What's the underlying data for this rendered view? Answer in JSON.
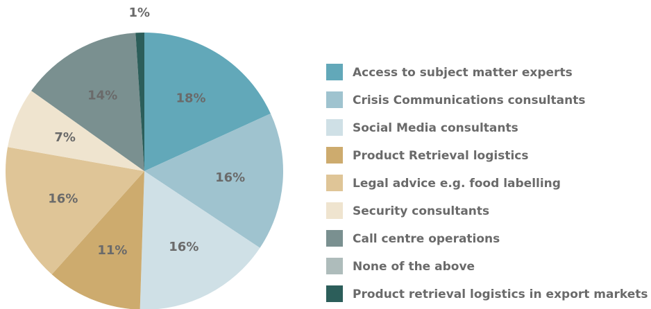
{
  "chart_data": {
    "type": "pie",
    "categories": [
      "Access to subject matter experts",
      "Crisis Communications consultants",
      "Social Media consultants",
      "Product Retrieval logistics",
      "Legal advice e.g. food labelling",
      "Security consultants",
      "Call centre operations",
      "None of the above",
      "Product retrieval logistics in export markets"
    ],
    "values": [
      18,
      16,
      16,
      11,
      16,
      7,
      14,
      0,
      1
    ],
    "value_labels": [
      "18%",
      "16%",
      "16%",
      "11%",
      "16%",
      "7%",
      "14%",
      null,
      "1%"
    ],
    "colors": [
      "#62a8b9",
      "#9fc3cf",
      "#cfe0e6",
      "#cdab6e",
      "#dfc597",
      "#efe4cf",
      "#7a9090",
      "#aebcbb",
      "#2c5e5a"
    ],
    "legend": "right"
  }
}
